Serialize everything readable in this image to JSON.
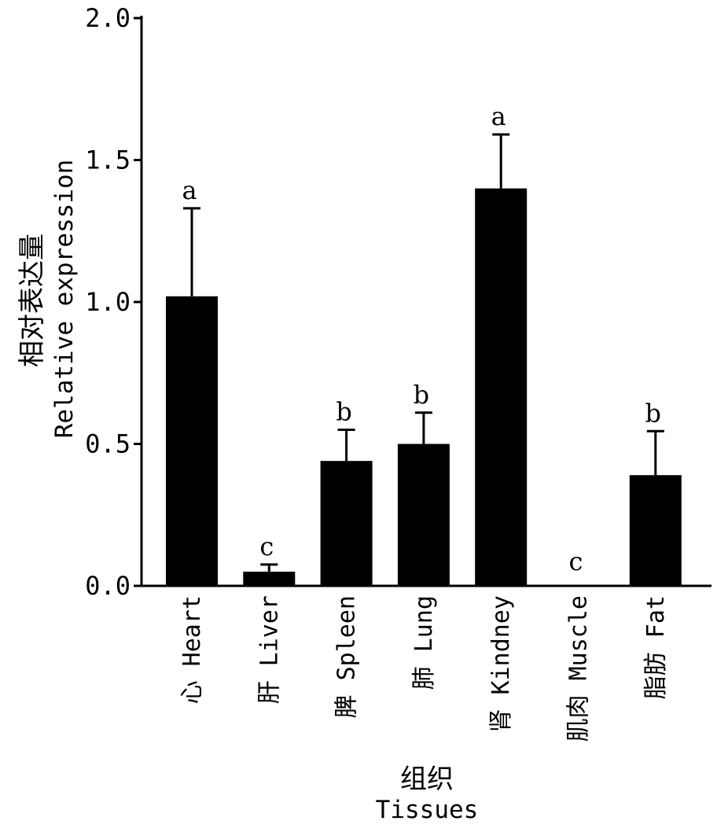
{
  "chart_data": {
    "type": "bar",
    "categories": [
      "心 Heart",
      "肝 Liver",
      "脾 Spleen",
      "肺 Lung",
      "肾 Kindney",
      "肌肉 Muscle",
      "脂肪 Fat"
    ],
    "values": [
      1.02,
      0.05,
      0.44,
      0.5,
      1.4,
      0.0,
      0.39
    ],
    "errors": [
      0.31,
      0.025,
      0.11,
      0.11,
      0.19,
      0.0,
      0.155
    ],
    "significance": [
      "a",
      "c",
      "b",
      "b",
      "a",
      "c",
      "b"
    ],
    "ylim": [
      0,
      2.0
    ],
    "yticks": [
      "0.0",
      "0.5",
      "1.0",
      "1.5",
      "2.0"
    ],
    "ylabel_cn": "相对表达量",
    "ylabel_en": "Relative expression",
    "xlabel_cn": "组织",
    "xlabel_en": "Tissues",
    "bar_color": "#000000",
    "grid": false,
    "legend": "none"
  }
}
